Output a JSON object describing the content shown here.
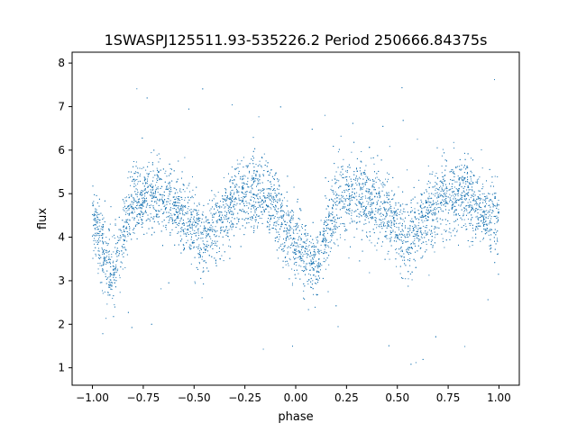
{
  "chart_data": {
    "type": "scatter",
    "title": "1SWASPJ125511.93-535226.2 Period 250666.84375s",
    "xlabel": "phase",
    "ylabel": "flux",
    "xlim": [
      -1.1,
      1.1
    ],
    "ylim": [
      0.6,
      8.25
    ],
    "xticks": [
      -1.0,
      -0.75,
      -0.5,
      -0.25,
      0.0,
      0.25,
      0.5,
      0.75,
      1.0
    ],
    "xtick_labels": [
      "−1.00",
      "−0.75",
      "−0.50",
      "−0.25",
      "0.00",
      "0.25",
      "0.50",
      "0.75",
      "1.00"
    ],
    "yticks": [
      1,
      2,
      3,
      4,
      5,
      6,
      7,
      8
    ],
    "ytick_labels": [
      "1",
      "2",
      "3",
      "4",
      "5",
      "6",
      "7",
      "8"
    ],
    "grid": false,
    "marker_color": "#1f77b4",
    "profile": {
      "phase": [
        -1.0,
        -0.95,
        -0.9,
        -0.85,
        -0.8,
        -0.7,
        -0.6,
        -0.5,
        -0.45,
        -0.4,
        -0.3,
        -0.2,
        -0.1,
        -0.05,
        0.0,
        0.05,
        0.1,
        0.15,
        0.2,
        0.3,
        0.4,
        0.5,
        0.55,
        0.6,
        0.7,
        0.8,
        0.9,
        0.95,
        1.0
      ],
      "flux": [
        4.5,
        3.7,
        3.2,
        4.0,
        4.8,
        5.0,
        4.8,
        4.2,
        3.9,
        4.2,
        4.8,
        5.0,
        4.7,
        4.1,
        3.9,
        3.6,
        3.2,
        4.1,
        4.8,
        5.0,
        4.8,
        4.3,
        3.9,
        4.2,
        4.8,
        5.0,
        4.7,
        4.4,
        4.5
      ]
    }
  }
}
